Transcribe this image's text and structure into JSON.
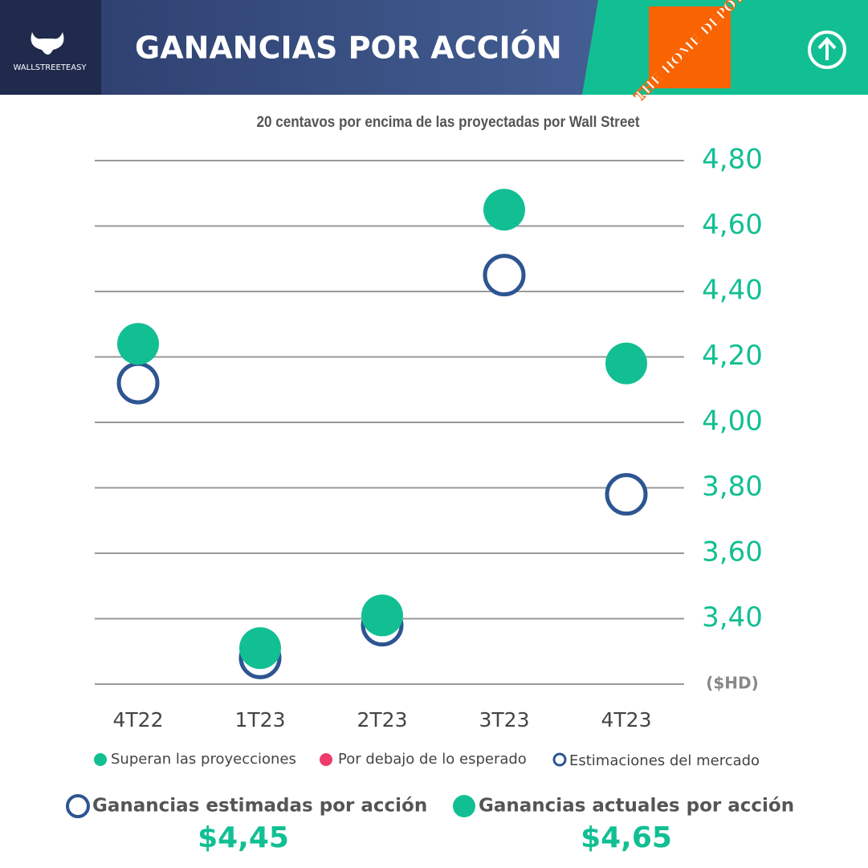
{
  "header": {
    "logo": "WALLSTREETEASY",
    "title": "GANANCIAS POR ACCIÓN",
    "brand": "THE HOME DEPOT"
  },
  "chart_data": {
    "type": "scatter",
    "subtitle": "20 centavos por encima de las proyectadas por Wall Street",
    "categories": [
      "4T22",
      "1T23",
      "2T23",
      "3T23",
      "4T23"
    ],
    "series": [
      {
        "name": "Superan las proyecciones",
        "color": "#12bf93",
        "values": [
          4.24,
          3.31,
          3.41,
          4.65,
          4.18
        ]
      },
      {
        "name": "Estimaciones del mercado",
        "color": "#2d5592",
        "hollow": true,
        "values": [
          4.12,
          3.28,
          3.38,
          4.45,
          3.78
        ]
      }
    ],
    "legend_extra": {
      "name": "Por debajo de lo esperado",
      "color": "#ef3b6b"
    },
    "ylim": [
      3.2,
      4.8
    ],
    "yticks": [
      {
        "value": 3.2,
        "label": "($HD)"
      },
      {
        "value": 3.4,
        "label": "3,40"
      },
      {
        "value": 3.6,
        "label": "3,60"
      },
      {
        "value": 3.8,
        "label": "3,80"
      },
      {
        "value": 4.0,
        "label": "4,00"
      },
      {
        "value": 4.2,
        "label": "4,20"
      },
      {
        "value": 4.4,
        "label": "4,40"
      },
      {
        "value": 4.6,
        "label": "4,60"
      },
      {
        "value": 4.8,
        "label": "4,80"
      }
    ],
    "grid": true
  },
  "summary": [
    {
      "label": "Ganancias estimadas por acción",
      "value": "$4,45"
    },
    {
      "label": "Ganancias actuales por acción",
      "value": "$4,65"
    }
  ]
}
